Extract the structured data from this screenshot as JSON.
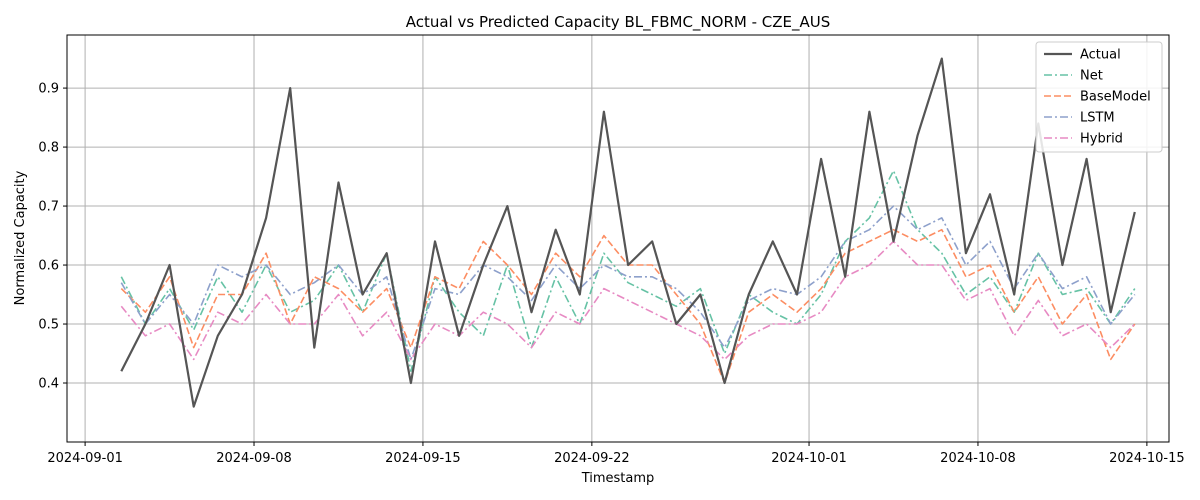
{
  "chart_data": {
    "type": "line",
    "title": "Actual vs Predicted Capacity BL_FBMC_NORM - CZE_AUS",
    "xlabel": "Timestamp",
    "ylabel": "Normalized Capacity",
    "x_axis_type": "date",
    "xlim": [
      "2024-08-31T06:00",
      "2024-10-15T22:00"
    ],
    "ylim": [
      0.3,
      0.99
    ],
    "x_ticks": [
      "2024-09-01",
      "2024-09-08",
      "2024-09-15",
      "2024-09-22",
      "2024-10-01",
      "2024-10-08",
      "2024-10-15"
    ],
    "y_ticks": [
      0.4,
      0.5,
      0.6,
      0.7,
      0.8,
      0.9
    ],
    "grid": true,
    "legend_position": "top-right",
    "x": [
      "2024-09-02",
      "2024-09-03",
      "2024-09-04",
      "2024-09-05",
      "2024-09-06",
      "2024-09-07",
      "2024-09-08",
      "2024-09-09",
      "2024-09-10",
      "2024-09-11",
      "2024-09-12",
      "2024-09-13",
      "2024-09-14",
      "2024-09-15",
      "2024-09-16",
      "2024-09-17",
      "2024-09-18",
      "2024-09-19",
      "2024-09-20",
      "2024-09-21",
      "2024-09-22",
      "2024-09-23",
      "2024-09-24",
      "2024-09-25",
      "2024-09-26",
      "2024-09-27",
      "2024-09-28",
      "2024-09-29",
      "2024-09-30",
      "2024-10-01",
      "2024-10-02",
      "2024-10-03",
      "2024-10-04",
      "2024-10-05",
      "2024-10-06",
      "2024-10-07",
      "2024-10-08",
      "2024-10-09",
      "2024-10-10",
      "2024-10-11",
      "2024-10-12",
      "2024-10-13",
      "2024-10-14"
    ],
    "series": [
      {
        "name": "Actual",
        "color": "#555555",
        "dash": "solid",
        "values": [
          0.42,
          0.5,
          0.6,
          0.36,
          0.48,
          0.55,
          0.68,
          0.9,
          0.46,
          0.74,
          0.55,
          0.62,
          0.4,
          0.64,
          0.48,
          0.6,
          0.7,
          0.52,
          0.66,
          0.55,
          0.86,
          0.6,
          0.64,
          0.5,
          0.55,
          0.4,
          0.55,
          0.64,
          0.55,
          0.78,
          0.58,
          0.86,
          0.64,
          0.82,
          0.95,
          0.62,
          0.72,
          0.55,
          0.84,
          0.6,
          0.78,
          0.52,
          0.69
        ]
      },
      {
        "name": "Net",
        "color": "#66c2a5",
        "dash": "dashdot",
        "values": [
          0.58,
          0.5,
          0.56,
          0.49,
          0.58,
          0.52,
          0.6,
          0.52,
          0.54,
          0.6,
          0.52,
          0.62,
          0.42,
          0.58,
          0.52,
          0.48,
          0.6,
          0.46,
          0.58,
          0.5,
          0.62,
          0.57,
          0.55,
          0.53,
          0.56,
          0.45,
          0.55,
          0.52,
          0.5,
          0.55,
          0.64,
          0.68,
          0.76,
          0.66,
          0.62,
          0.55,
          0.58,
          0.52,
          0.62,
          0.55,
          0.56,
          0.5,
          0.56
        ]
      },
      {
        "name": "BaseModel",
        "color": "#fc8d62",
        "dash": "dashed",
        "values": [
          0.56,
          0.52,
          0.58,
          0.46,
          0.55,
          0.55,
          0.62,
          0.5,
          0.58,
          0.56,
          0.52,
          0.56,
          0.46,
          0.58,
          0.56,
          0.64,
          0.6,
          0.55,
          0.62,
          0.58,
          0.65,
          0.6,
          0.6,
          0.55,
          0.5,
          0.4,
          0.52,
          0.55,
          0.52,
          0.56,
          0.62,
          0.64,
          0.66,
          0.64,
          0.66,
          0.58,
          0.6,
          0.52,
          0.58,
          0.5,
          0.55,
          0.44,
          0.5
        ]
      },
      {
        "name": "LSTM",
        "color": "#8da0cb",
        "dash": "dashdot",
        "values": [
          0.57,
          0.5,
          0.55,
          0.5,
          0.6,
          0.58,
          0.6,
          0.55,
          0.57,
          0.6,
          0.55,
          0.58,
          0.44,
          0.56,
          0.55,
          0.6,
          0.58,
          0.54,
          0.6,
          0.56,
          0.6,
          0.58,
          0.58,
          0.56,
          0.52,
          0.46,
          0.54,
          0.56,
          0.55,
          0.58,
          0.64,
          0.66,
          0.7,
          0.66,
          0.68,
          0.6,
          0.64,
          0.56,
          0.62,
          0.56,
          0.58,
          0.5,
          0.55
        ]
      },
      {
        "name": "Hybrid",
        "color": "#e78ac3",
        "dash": "dashdot",
        "values": [
          0.53,
          0.48,
          0.5,
          0.44,
          0.52,
          0.5,
          0.55,
          0.5,
          0.5,
          0.55,
          0.48,
          0.52,
          0.44,
          0.5,
          0.48,
          0.52,
          0.5,
          0.46,
          0.52,
          0.5,
          0.56,
          0.54,
          0.52,
          0.5,
          0.48,
          0.44,
          0.48,
          0.5,
          0.5,
          0.52,
          0.58,
          0.6,
          0.64,
          0.6,
          0.6,
          0.54,
          0.56,
          0.48,
          0.54,
          0.48,
          0.5,
          0.46,
          0.5
        ]
      }
    ]
  }
}
